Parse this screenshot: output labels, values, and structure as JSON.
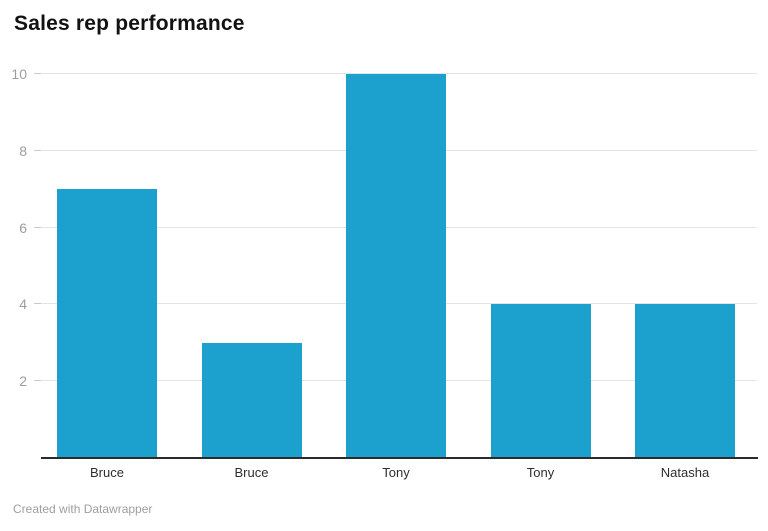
{
  "header": {
    "title": "Sales rep performance"
  },
  "footer": {
    "credit": "Created with Datawrapper"
  },
  "colors": {
    "bar": "#1ca0ce",
    "gridline": "#e4e4e4",
    "tick_mark": "#c9c9c9",
    "tick_label": "#9d9d9d",
    "baseline": "#2b2b2b",
    "title_text": "#121212",
    "xlabel_text": "#2e2e2e",
    "footer_text": "#9e9e9e",
    "background": "#ffffff"
  },
  "chart_data": {
    "type": "bar",
    "title": "Sales rep performance",
    "categories": [
      "Bruce",
      "Bruce",
      "Tony",
      "Tony",
      "Natasha"
    ],
    "values": [
      7,
      3,
      10,
      4,
      4
    ],
    "xlabel": "",
    "ylabel": "",
    "ylim": [
      0,
      10
    ],
    "yticks": [
      2,
      4,
      6,
      8,
      10
    ],
    "grid": "horizontal-only",
    "legend": "none",
    "bar_orientation": "vertical"
  }
}
